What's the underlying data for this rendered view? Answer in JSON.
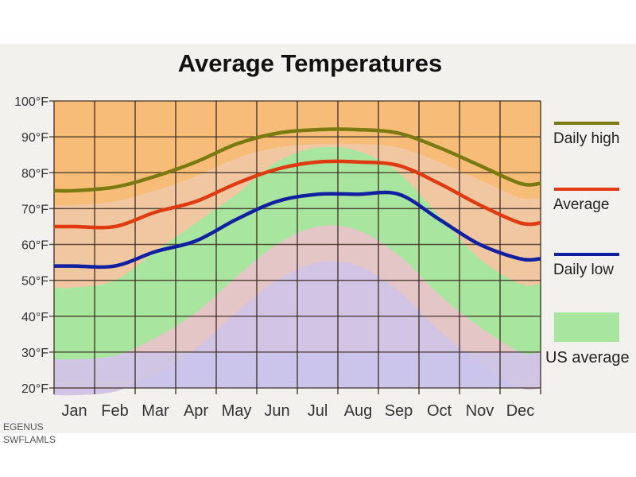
{
  "chart_data": {
    "type": "line",
    "title": "Average Temperatures",
    "categories": [
      "Jan",
      "Feb",
      "Mar",
      "Apr",
      "May",
      "Jun",
      "Jul",
      "Aug",
      "Sep",
      "Oct",
      "Nov",
      "Dec"
    ],
    "y_ticks": [
      "20°F",
      "30°F",
      "40°F",
      "50°F",
      "60°F",
      "70°F",
      "80°F",
      "90°F",
      "100°F"
    ],
    "ylim": [
      20,
      100
    ],
    "grid": true,
    "legend_placement": "right",
    "series": [
      {
        "name": "Daily high",
        "color": "#7a7a10",
        "values": [
          75,
          76,
          79,
          83,
          88,
          91,
          92,
          92,
          91,
          87,
          82,
          77
        ]
      },
      {
        "name": "Average",
        "color": "#e03a10",
        "values": [
          65,
          65,
          69,
          72,
          77,
          81,
          83,
          83,
          82,
          77,
          71,
          66
        ]
      },
      {
        "name": "Daily low",
        "color": "#1020a0",
        "values": [
          54,
          54,
          58,
          61,
          67,
          72,
          74,
          74,
          74,
          67,
          60,
          56
        ]
      }
    ],
    "us_average_band": {
      "name": "US average",
      "color": "#a8e6a0",
      "high": [
        48,
        50,
        58,
        66,
        74,
        83,
        87,
        86,
        80,
        68,
        56,
        49
      ],
      "low": [
        28,
        29,
        34,
        41,
        51,
        60,
        65,
        64,
        57,
        46,
        37,
        30
      ]
    }
  },
  "watermark": {
    "line1": "EGENUS",
    "line2": "SWFLAMLS"
  }
}
